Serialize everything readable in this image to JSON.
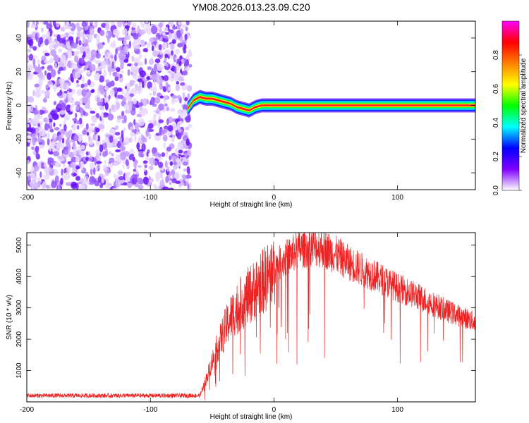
{
  "title": "YM08.2026.013.23.09.C20",
  "chart_data": [
    {
      "type": "heatmap",
      "xlabel": "Height of straight line (km)",
      "ylabel": "Frequency (Hz)",
      "xlim": [
        -200,
        163
      ],
      "ylim": [
        -50,
        50
      ],
      "xticks": [
        "-200",
        "-100",
        "0",
        "100"
      ],
      "yticks": [
        "-40",
        "-20",
        "0",
        "20",
        "40"
      ],
      "colorbar": {
        "label": "Normalized spectral amplitude",
        "range": [
          0,
          1
        ],
        "ticks": [
          "0.0",
          "0.2",
          "0.4",
          "0.6",
          "0.8"
        ],
        "colors": [
          "#ffffff",
          "#7f00ff",
          "#0000ff",
          "#00ffff",
          "#00ff00",
          "#ffff00",
          "#ff8000",
          "#ff0000",
          "#ff00ff"
        ]
      },
      "noise_region_x": [
        -200,
        -70
      ],
      "signal_track": {
        "x": [
          -70,
          -65,
          -60,
          -55,
          -50,
          -45,
          -40,
          -35,
          -30,
          -25,
          -20,
          -15,
          -10,
          -5,
          0,
          5,
          10,
          20,
          50,
          100,
          163
        ],
        "freq": [
          -2,
          3,
          5,
          4,
          4,
          3,
          2,
          1,
          -1,
          -2,
          -3,
          -1,
          0,
          0,
          0,
          0,
          0,
          0,
          0,
          0,
          0
        ]
      }
    },
    {
      "type": "line",
      "xlabel": "Height of straight line (km)",
      "ylabel": "SNR (10 * v/v)",
      "xlim": [
        -200,
        163
      ],
      "ylim": [
        0,
        5400
      ],
      "xticks": [
        "-200",
        "-100",
        "0",
        "100"
      ],
      "yticks": [
        "1000",
        "2000",
        "3000",
        "4000",
        "5000"
      ],
      "color": "#ee2222",
      "envelope": {
        "x": [
          -200,
          -150,
          -100,
          -60,
          -55,
          -50,
          -45,
          -40,
          -35,
          -30,
          -25,
          -20,
          -15,
          -10,
          -5,
          0,
          10,
          20,
          30,
          40,
          50,
          60,
          80,
          100,
          120,
          140,
          163
        ],
        "y": [
          200,
          200,
          200,
          200,
          700,
          1300,
          1800,
          2300,
          2700,
          3000,
          3200,
          3400,
          3600,
          3800,
          4000,
          4300,
          4600,
          4850,
          4950,
          4900,
          4700,
          4450,
          4050,
          3650,
          3300,
          2900,
          2550
        ]
      }
    }
  ]
}
